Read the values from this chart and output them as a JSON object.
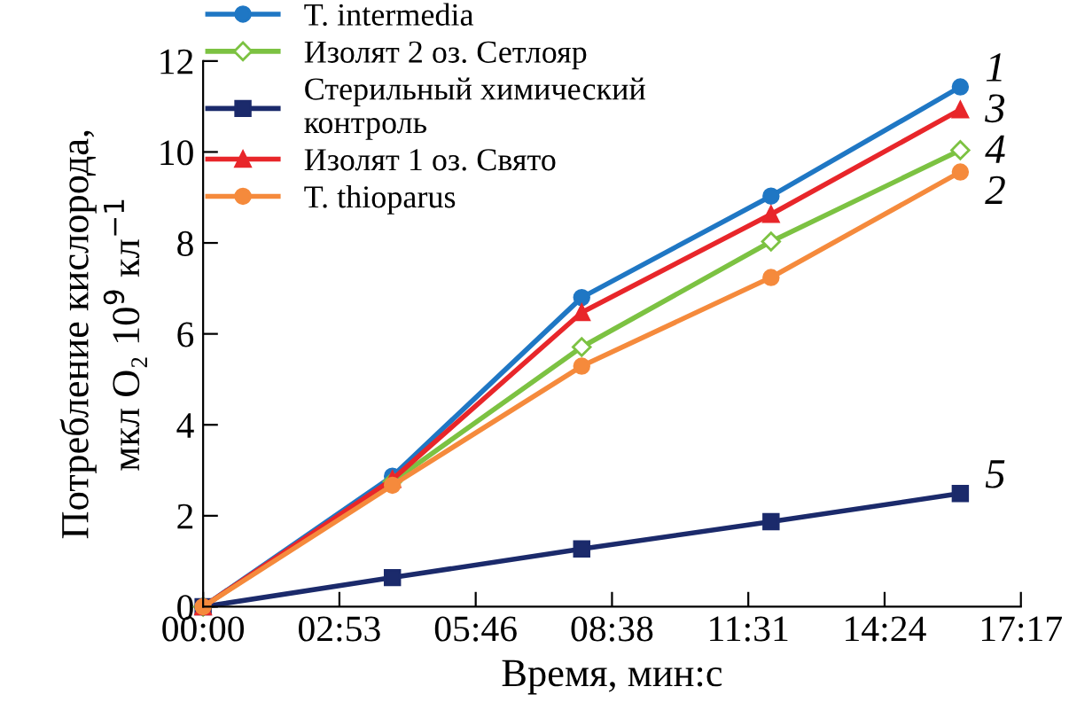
{
  "chart_data": {
    "type": "line",
    "xlabel": "Время, мин:с",
    "ylabel": "Потребление кислорода,\nмкл O₂ 10$^{9}$ кл$^{−1}$",
    "x": [
      0,
      4,
      8,
      12,
      16
    ],
    "xlim": [
      0,
      17.28
    ],
    "xticks": [
      {
        "value": 0,
        "label": "00:00"
      },
      {
        "value": 2.88,
        "label": "02:53"
      },
      {
        "value": 5.76,
        "label": "05:46"
      },
      {
        "value": 8.64,
        "label": "08:38"
      },
      {
        "value": 11.52,
        "label": "11:31"
      },
      {
        "value": 14.4,
        "label": "14:24"
      },
      {
        "value": 17.28,
        "label": "17:17"
      }
    ],
    "ylim": [
      0,
      12
    ],
    "yticks": [
      0,
      2,
      4,
      6,
      8,
      10,
      12
    ],
    "grid": false,
    "legend": "top left",
    "line_style": "solid",
    "series": [
      {
        "name": "T. intermedia",
        "color": "#1f77c4",
        "marker": "circle",
        "values": [
          0,
          2.87,
          6.8,
          9.03,
          11.43
        ]
      },
      {
        "name": "Изолят 2 оз. Сетлояр",
        "color": "#7cc242",
        "marker": "diamond",
        "values": [
          0,
          2.75,
          5.71,
          8.03,
          10.04
        ]
      },
      {
        "name": "Стерильный химический\nконтроль",
        "color": "#1b2a6b",
        "marker": "square",
        "values": [
          0,
          0.64,
          1.27,
          1.87,
          2.49
        ]
      },
      {
        "name": "Изолят 1 оз. Свято",
        "color": "#e8262a",
        "marker": "triangle",
        "values": [
          0,
          2.8,
          6.47,
          8.63,
          10.93
        ]
      },
      {
        "name": "T. thioparus",
        "color": "#f58a3c",
        "marker": "circle",
        "values": [
          0,
          2.67,
          5.29,
          7.24,
          9.56
        ]
      }
    ],
    "annotations": [
      "1",
      "4",
      "5",
      "3",
      "2"
    ]
  }
}
